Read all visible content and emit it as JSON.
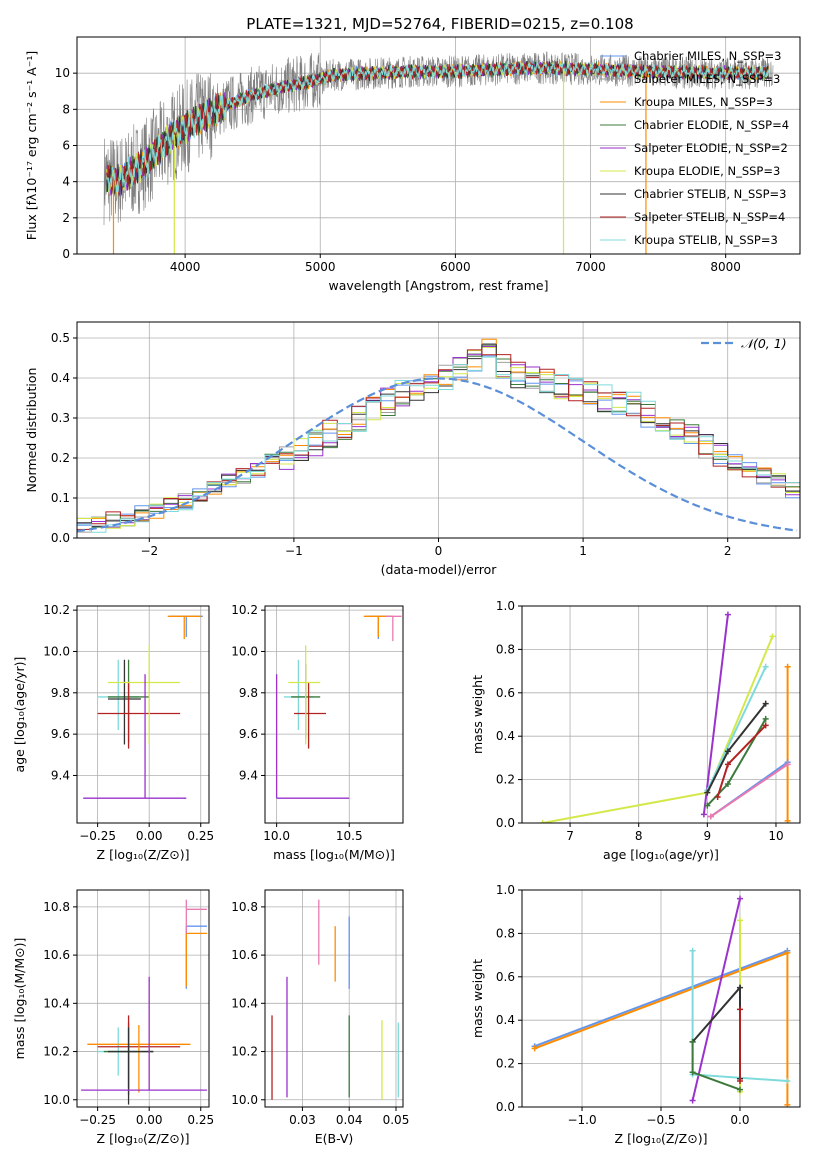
{
  "figure_title": "PLATE=1321, MJD=52764, FIBERID=0215, z=0.108",
  "series_colors": [
    "#6495ed",
    "#a0a0a0",
    "#ff8c00",
    "#3c7a3c",
    "#9a32cd",
    "#d4e84a",
    "#333333",
    "#b22222",
    "#7fdbdb"
  ],
  "chart_data": [
    {
      "id": "spectrum",
      "type": "line",
      "xlabel": "wavelength [Angstrom, rest frame]",
      "ylabel": "Flux [fλ10⁻¹⁷ erg cm⁻² s⁻¹ A⁻¹]",
      "xlim": [
        3200,
        8550
      ],
      "ylim": [
        0,
        12
      ],
      "xticks": [
        4000,
        5000,
        6000,
        7000,
        8000
      ],
      "yticks": [
        0,
        2,
        4,
        6,
        8,
        10
      ],
      "legend": "top-right",
      "series": [
        {
          "name": "Chabrier MILES, N_SSP=3",
          "color": "#6495ed"
        },
        {
          "name": "Salpeter MILES, N_SSP=3",
          "color": "#9a9a9a"
        },
        {
          "name": "Kroupa MILES, N_SSP=3",
          "color": "#ff8c00"
        },
        {
          "name": "Chabrier ELODIE, N_SSP=4",
          "color": "#3c7a3c"
        },
        {
          "name": "Salpeter ELODIE, N_SSP=2",
          "color": "#9a32cd"
        },
        {
          "name": "Kroupa ELODIE, N_SSP=3",
          "color": "#d4e84a"
        },
        {
          "name": "Chabrier STELIB, N_SSP=3",
          "color": "#333333"
        },
        {
          "name": "Salpeter STELIB, N_SSP=4",
          "color": "#b22222"
        },
        {
          "name": "Kroupa STELIB, N_SSP=3",
          "color": "#7fdbdb"
        }
      ],
      "continuum": [
        [
          3400,
          4.2
        ],
        [
          3500,
          4.0
        ],
        [
          3700,
          5.0
        ],
        [
          3900,
          6.5
        ],
        [
          4100,
          7.5
        ],
        [
          4300,
          8.2
        ],
        [
          4500,
          8.8
        ],
        [
          4700,
          9.2
        ],
        [
          4900,
          9.5
        ],
        [
          5100,
          9.9
        ],
        [
          5400,
          10.0
        ],
        [
          5700,
          10.1
        ],
        [
          6000,
          10.1
        ],
        [
          6300,
          10.2
        ],
        [
          6600,
          10.3
        ],
        [
          7000,
          10.2
        ],
        [
          7400,
          10.1
        ],
        [
          7800,
          10.0
        ],
        [
          8200,
          10.0
        ],
        [
          8300,
          10.0
        ]
      ],
      "observed_range": [
        3400,
        8350
      ]
    },
    {
      "id": "residuals",
      "type": "histogram",
      "xlabel": "(data-model)/error",
      "ylabel": "Normed distribution",
      "xlim": [
        -2.5,
        2.5
      ],
      "ylim": [
        0,
        0.54
      ],
      "xticks": [
        -2,
        -1,
        0,
        1,
        2
      ],
      "yticks": [
        0.0,
        0.1,
        0.2,
        0.3,
        0.4,
        0.5
      ],
      "legend": "top-right",
      "reference": {
        "name": "𝒩(0, 1)",
        "color": "#5b8fd9",
        "mean": 0,
        "sigma": 1
      },
      "bin_width": 0.1,
      "base_profile": [
        0.03,
        0.035,
        0.045,
        0.05,
        0.06,
        0.07,
        0.08,
        0.09,
        0.11,
        0.12,
        0.14,
        0.155,
        0.17,
        0.19,
        0.205,
        0.22,
        0.24,
        0.26,
        0.28,
        0.3,
        0.32,
        0.34,
        0.36,
        0.375,
        0.39,
        0.4,
        0.42,
        0.44,
        0.47,
        0.43,
        0.41,
        0.4,
        0.39,
        0.38,
        0.37,
        0.36,
        0.35,
        0.34,
        0.33,
        0.31,
        0.29,
        0.27,
        0.25,
        0.23,
        0.21,
        0.19,
        0.17,
        0.155,
        0.14,
        0.12,
        0.105,
        0.09,
        0.08,
        0.07,
        0.06,
        0.05,
        0.045,
        0.04,
        0.035,
        0.03
      ],
      "bin_start": -2.5
    },
    {
      "id": "age-vs-Z",
      "type": "errorbar",
      "xlabel": "Z [log₁₀(Z/Z⊙)]",
      "ylabel": "age  [log₁₀(age/yr)]",
      "xlim": [
        -0.35,
        0.29
      ],
      "ylim": [
        9.17,
        10.22
      ],
      "xticks": [
        -0.25,
        0.0,
        0.25
      ],
      "yticks": [
        9.4,
        9.6,
        9.8,
        10.0,
        10.2
      ],
      "points": [
        {
          "x": 0.18,
          "y": 10.17,
          "xerr": [
            0.08,
            0.08
          ],
          "yerr": [
            0.1,
            0.0
          ],
          "color": "#6495ed"
        },
        {
          "x": 0.17,
          "y": 10.17,
          "xerr": [
            0.08,
            0.08
          ],
          "yerr": [
            0.11,
            0.0
          ],
          "color": "#ff8c00"
        },
        {
          "x": -0.15,
          "y": 9.78,
          "xerr": [
            0.1,
            0.1
          ],
          "yerr": [
            0.16,
            0.18
          ],
          "color": "#7fdbdb"
        },
        {
          "x": -0.1,
          "y": 9.78,
          "xerr": [
            0.1,
            0.1
          ],
          "yerr": [
            0.22,
            0.18
          ],
          "color": "#3c7a3c"
        },
        {
          "x": -0.12,
          "y": 9.77,
          "xerr": [
            0.08,
            0.08
          ],
          "yerr": [
            0.22,
            0.19
          ],
          "color": "#333333"
        },
        {
          "x": -0.1,
          "y": 9.7,
          "xerr": [
            0.15,
            0.25
          ],
          "yerr": [
            0.17,
            0.15
          ],
          "color": "#b22222"
        },
        {
          "x": 0.0,
          "y": 9.85,
          "xerr": [
            0.2,
            0.15
          ],
          "yerr": [
            0.3,
            0.18
          ],
          "color": "#d4e84a"
        },
        {
          "x": -0.02,
          "y": 9.29,
          "xerr": [
            0.3,
            0.2
          ],
          "yerr": [
            0.0,
            0.6
          ],
          "color": "#9a32cd"
        }
      ]
    },
    {
      "id": "age-vs-mass",
      "type": "errorbar",
      "xlabel": "mass [log₁₀(M/M⊙)]",
      "ylabel": "",
      "xlim": [
        9.92,
        10.87
      ],
      "ylim": [
        9.17,
        10.22
      ],
      "xticks": [
        10.0,
        10.5
      ],
      "yticks": [
        9.4,
        9.6,
        9.8,
        10.0,
        10.2
      ],
      "points": [
        {
          "x": 10.7,
          "y": 10.17,
          "xerr": [
            0.08,
            0.1
          ],
          "yerr": [
            0.11,
            0.0
          ],
          "color": "#6495ed"
        },
        {
          "x": 10.7,
          "y": 10.17,
          "xerr": [
            0.1,
            0.1
          ],
          "yerr": [
            0.1,
            0.0
          ],
          "color": "#ff8c00"
        },
        {
          "x": 10.8,
          "y": 10.17,
          "xerr": [
            0.05,
            0.06
          ],
          "yerr": [
            0.12,
            0.0
          ],
          "color": "#e87ab0"
        },
        {
          "x": 10.15,
          "y": 9.78,
          "xerr": [
            0.1,
            0.1
          ],
          "yerr": [
            0.16,
            0.18
          ],
          "color": "#7fdbdb"
        },
        {
          "x": 10.2,
          "y": 9.78,
          "xerr": [
            0.1,
            0.1
          ],
          "yerr": [
            0.2,
            0.16
          ],
          "color": "#3c7a3c"
        },
        {
          "x": 10.22,
          "y": 9.7,
          "xerr": [
            0.1,
            0.12
          ],
          "yerr": [
            0.17,
            0.15
          ],
          "color": "#b22222"
        },
        {
          "x": 10.2,
          "y": 9.85,
          "xerr": [
            0.12,
            0.1
          ],
          "yerr": [
            0.3,
            0.18
          ],
          "color": "#d4e84a"
        },
        {
          "x": 10.0,
          "y": 9.29,
          "xerr": [
            0.0,
            0.5
          ],
          "yerr": [
            0.0,
            0.6
          ],
          "color": "#9a32cd"
        }
      ]
    },
    {
      "id": "weight-vs-age",
      "type": "line",
      "xlabel": "age  [log₁₀(age/yr)]",
      "ylabel": "mass weight",
      "xlim": [
        6.3,
        10.35
      ],
      "ylim": [
        0,
        1.0
      ],
      "xticks": [
        7,
        8,
        9,
        10
      ],
      "yticks": [
        0.0,
        0.2,
        0.4,
        0.6,
        0.8,
        1.0
      ],
      "series": [
        {
          "color": "#9a32cd",
          "points": [
            [
              8.95,
              0.04
            ],
            [
              9.3,
              0.96
            ]
          ]
        },
        {
          "color": "#d4e84a",
          "points": [
            [
              6.6,
              0.0
            ],
            [
              9.0,
              0.14
            ],
            [
              9.95,
              0.86
            ]
          ]
        },
        {
          "color": "#7fdbdb",
          "points": [
            [
              9.0,
              0.15
            ],
            [
              9.85,
              0.72
            ]
          ]
        },
        {
          "color": "#333333",
          "points": [
            [
              9.0,
              0.14
            ],
            [
              9.3,
              0.33
            ],
            [
              9.85,
              0.55
            ]
          ]
        },
        {
          "color": "#3c7a3c",
          "points": [
            [
              9.0,
              0.08
            ],
            [
              9.3,
              0.18
            ],
            [
              9.85,
              0.48
            ]
          ]
        },
        {
          "color": "#b22222",
          "points": [
            [
              9.15,
              0.12
            ],
            [
              9.3,
              0.27
            ],
            [
              9.85,
              0.45
            ]
          ]
        },
        {
          "color": "#ff8c00",
          "points": [
            [
              10.17,
              0.01
            ],
            [
              10.17,
              0.72
            ]
          ]
        },
        {
          "color": "#6495ed",
          "points": [
            [
              9.05,
              0.03
            ],
            [
              10.17,
              0.28
            ]
          ]
        },
        {
          "color": "#e87ab0",
          "points": [
            [
              9.05,
              0.03
            ],
            [
              10.17,
              0.27
            ]
          ]
        }
      ]
    },
    {
      "id": "mass-vs-Z",
      "type": "errorbar",
      "xlabel": "Z [log₁₀(Z/Z⊙)]",
      "ylabel": "mass [log₁₀(M/M⊙)]",
      "xlim": [
        -0.35,
        0.29
      ],
      "ylim": [
        9.97,
        10.87
      ],
      "xticks": [
        -0.25,
        0.0,
        0.25
      ],
      "yticks": [
        10.0,
        10.2,
        10.4,
        10.6,
        10.8
      ],
      "points": [
        {
          "x": 0.18,
          "y": 10.72,
          "xerr": [
            0.0,
            0.1
          ],
          "yerr": [
            0.26,
            0.0
          ],
          "color": "#6495ed"
        },
        {
          "x": 0.18,
          "y": 10.69,
          "xerr": [
            0.0,
            0.1
          ],
          "yerr": [
            0.22,
            0.0
          ],
          "color": "#ff8c00"
        },
        {
          "x": 0.18,
          "y": 10.79,
          "xerr": [
            0.0,
            0.1
          ],
          "yerr": [
            0.1,
            0.04
          ],
          "color": "#e87ab0"
        },
        {
          "x": -0.15,
          "y": 10.2,
          "xerr": [
            0.1,
            0.1
          ],
          "yerr": [
            0.1,
            0.1
          ],
          "color": "#7fdbdb"
        },
        {
          "x": -0.1,
          "y": 10.2,
          "xerr": [
            0.12,
            0.12
          ],
          "yerr": [
            0.15,
            0.12
          ],
          "color": "#3c7a3c"
        },
        {
          "x": -0.1,
          "y": 10.22,
          "xerr": [
            0.15,
            0.25
          ],
          "yerr": [
            0.2,
            0.13
          ],
          "color": "#b22222"
        },
        {
          "x": -0.05,
          "y": 10.23,
          "xerr": [
            0.25,
            0.25
          ],
          "yerr": [
            0.2,
            0.08
          ],
          "color": "#ff8c00"
        },
        {
          "x": -0.1,
          "y": 10.2,
          "xerr": [
            0.1,
            0.12
          ],
          "yerr": [
            0.22,
            0.1
          ],
          "color": "#333333"
        },
        {
          "x": 0.0,
          "y": 10.04,
          "xerr": [
            0.33,
            0.28
          ],
          "yerr": [
            0.0,
            0.47
          ],
          "color": "#9a32cd"
        }
      ]
    },
    {
      "id": "mass-vs-EBV",
      "type": "errorbar",
      "xlabel": "E(B-V)",
      "ylabel": "",
      "xlim": [
        0.022,
        0.0515
      ],
      "ylim": [
        9.97,
        10.87
      ],
      "xticks": [
        0.03,
        0.04,
        0.05
      ],
      "yticks": [
        10.0,
        10.2,
        10.4,
        10.6,
        10.8
      ],
      "points": [
        {
          "x": 0.0235,
          "y": 10.17,
          "xerr": [
            0,
            0
          ],
          "yerr": [
            0.17,
            0.18
          ],
          "color": "#b22222"
        },
        {
          "x": 0.0267,
          "y": 10.2,
          "xerr": [
            0,
            0
          ],
          "yerr": [
            0.19,
            0.31
          ],
          "color": "#9a32cd"
        },
        {
          "x": 0.0335,
          "y": 10.7,
          "xerr": [
            0,
            0
          ],
          "yerr": [
            0.14,
            0.13
          ],
          "color": "#e87ab0"
        },
        {
          "x": 0.037,
          "y": 10.6,
          "xerr": [
            0,
            0
          ],
          "yerr": [
            0.11,
            0.12
          ],
          "color": "#ff8c00"
        },
        {
          "x": 0.04,
          "y": 10.6,
          "xerr": [
            0,
            0
          ],
          "yerr": [
            0.14,
            0.16
          ],
          "color": "#6495ed"
        },
        {
          "x": 0.04,
          "y": 10.17,
          "xerr": [
            0,
            0
          ],
          "yerr": [
            0.16,
            0.18
          ],
          "color": "#3c7a3c"
        },
        {
          "x": 0.047,
          "y": 10.17,
          "xerr": [
            0,
            0
          ],
          "yerr": [
            0.17,
            0.16
          ],
          "color": "#d4e84a"
        },
        {
          "x": 0.0505,
          "y": 10.17,
          "xerr": [
            0,
            0
          ],
          "yerr": [
            0.16,
            0.15
          ],
          "color": "#7fdbdb"
        }
      ]
    },
    {
      "id": "weight-vs-Z",
      "type": "line",
      "xlabel": "Z [log₁₀(Z/Z⊙)]",
      "ylabel": "mass weight",
      "xlim": [
        -1.38,
        0.38
      ],
      "ylim": [
        0,
        1.0
      ],
      "xticks": [
        -1.0,
        -0.5,
        0.0
      ],
      "yticks": [
        0.0,
        0.2,
        0.4,
        0.6,
        0.8,
        1.0
      ],
      "series": [
        {
          "color": "#6495ed",
          "points": [
            [
              -1.3,
              0.28
            ],
            [
              0.3,
              0.72
            ]
          ]
        },
        {
          "color": "#ff8c00",
          "points": [
            [
              -1.3,
              0.27
            ],
            [
              0.3,
              0.71
            ],
            [
              0.3,
              0.01
            ]
          ]
        },
        {
          "color": "#9a32cd",
          "points": [
            [
              -0.3,
              0.03
            ],
            [
              0.0,
              0.96
            ]
          ]
        },
        {
          "color": "#d4e84a",
          "points": [
            [
              0.0,
              0.86
            ],
            [
              0.0,
              0.07
            ]
          ]
        },
        {
          "color": "#7fdbdb",
          "points": [
            [
              -0.3,
              0.72
            ],
            [
              -0.3,
              0.15
            ],
            [
              0.3,
              0.12
            ]
          ]
        },
        {
          "color": "#333333",
          "points": [
            [
              -0.3,
              0.3
            ],
            [
              0.0,
              0.55
            ],
            [
              0.0,
              0.13
            ]
          ]
        },
        {
          "color": "#3c7a3c",
          "points": [
            [
              -0.3,
              0.3
            ],
            [
              -0.3,
              0.16
            ],
            [
              0.0,
              0.08
            ]
          ]
        },
        {
          "color": "#b22222",
          "points": [
            [
              0.0,
              0.45
            ],
            [
              0.0,
              0.12
            ]
          ]
        }
      ]
    }
  ]
}
